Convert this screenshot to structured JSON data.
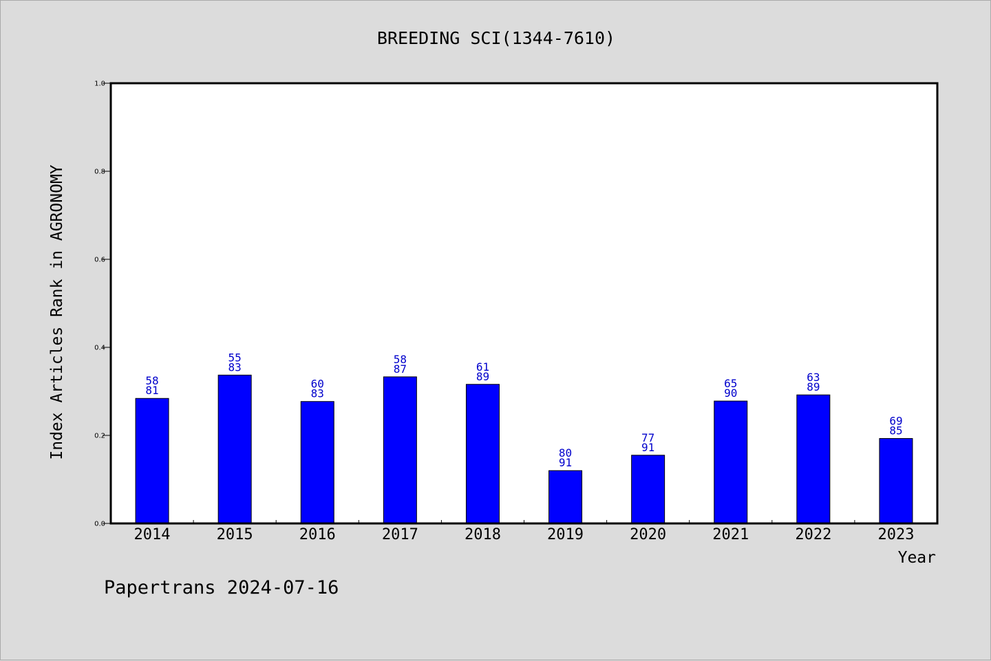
{
  "chart_data": {
    "type": "bar",
    "title": "BREEDING SCI(1344-7610)",
    "xlabel": "Year",
    "ylabel": "Index Articles Rank in AGRONOMY",
    "ylim": [
      0,
      1.0
    ],
    "yticks": [
      "0.0",
      "0.2",
      "0.4",
      "0.6",
      "0.8",
      "1.0"
    ],
    "grid": false,
    "categories": [
      "2014",
      "2015",
      "2016",
      "2017",
      "2018",
      "2019",
      "2020",
      "2021",
      "2022",
      "2023"
    ],
    "values": [
      0.284,
      0.337,
      0.277,
      0.333,
      0.316,
      0.12,
      0.155,
      0.278,
      0.292,
      0.193
    ],
    "labels_top": [
      "58",
      "55",
      "60",
      "58",
      "61",
      "80",
      "77",
      "65",
      "63",
      "69"
    ],
    "labels_bottom": [
      "81",
      "83",
      "83",
      "87",
      "89",
      "91",
      "91",
      "90",
      "89",
      "85"
    ],
    "bar_color": "#0000ff",
    "label_color": "#0000cc"
  },
  "footer": "Papertrans 2024-07-16"
}
